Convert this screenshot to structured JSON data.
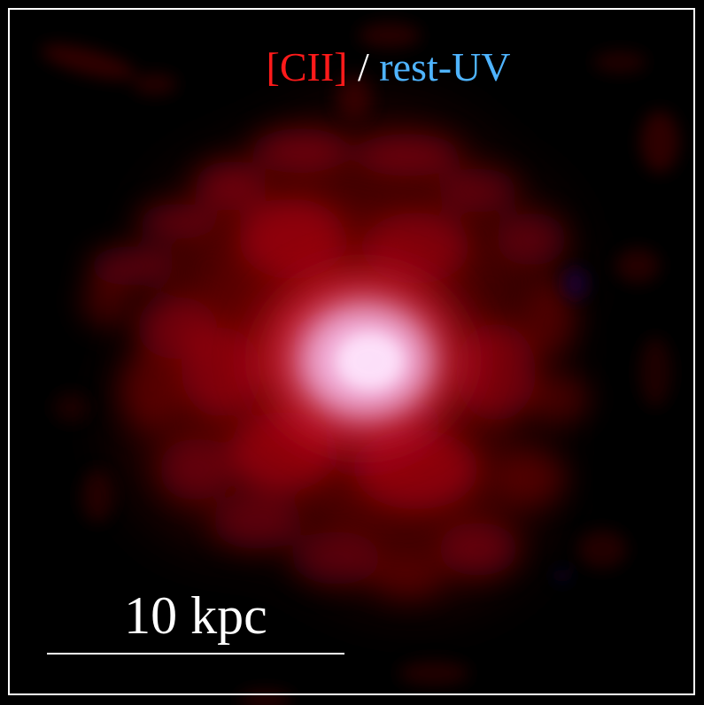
{
  "title": {
    "cii": "[CII]",
    "separator": " / ",
    "uv": "rest-UV"
  },
  "scale": {
    "label": "10 kpc"
  },
  "colors": {
    "cii": "#ff1a1a",
    "uv": "#4fb4ff",
    "core": "#ffd0ff",
    "background": "#000000"
  }
}
